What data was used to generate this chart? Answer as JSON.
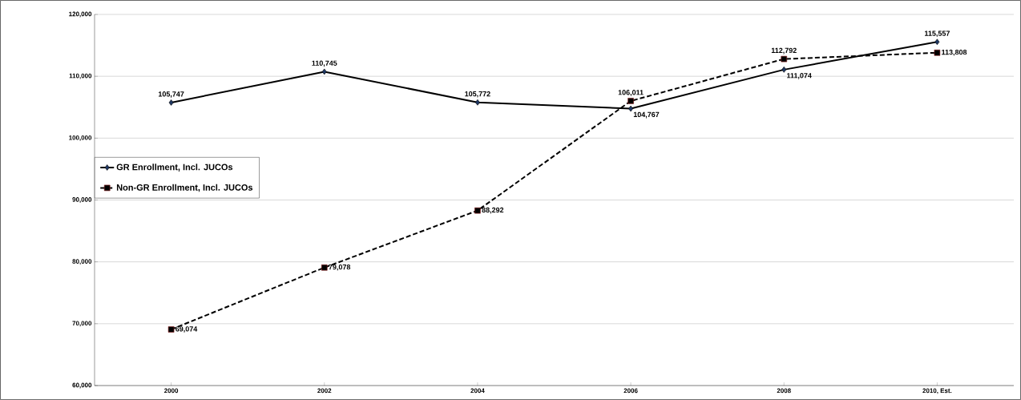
{
  "chart_data": {
    "type": "line",
    "categories": [
      "2000",
      "2002",
      "2004",
      "2006",
      "2008",
      "2010, Est."
    ],
    "series": [
      {
        "name": "GR Enrollment, Incl. JUCOs",
        "color": "#000000",
        "marker": "diamond",
        "line_style": "solid",
        "values": [
          105747,
          110745,
          105772,
          104767,
          111074,
          115557
        ],
        "value_labels": [
          "105,747",
          "110,745",
          "105,772",
          "104,767",
          "111,074",
          "115,557"
        ]
      },
      {
        "name": "Non-GR Enrollment, Incl. JUCOs",
        "color": "#000000",
        "marker": "square",
        "line_style": "dashed",
        "values": [
          69074,
          79078,
          88292,
          106011,
          112792,
          113808
        ],
        "value_labels": [
          "69,074",
          "79,078",
          "88,292",
          "106,011",
          "112,792",
          "113,808"
        ]
      }
    ],
    "ylim": [
      60000,
      120000
    ],
    "yticks": [
      {
        "value": 60000,
        "label": "60,000"
      },
      {
        "value": 70000,
        "label": "70,000"
      },
      {
        "value": 80000,
        "label": "80,000"
      },
      {
        "value": 90000,
        "label": "90,000"
      },
      {
        "value": 100000,
        "label": "100,000"
      },
      {
        "value": 110000,
        "label": "110,000"
      },
      {
        "value": 120000,
        "label": "120,000"
      }
    ],
    "grid": "y",
    "legend": "left"
  }
}
